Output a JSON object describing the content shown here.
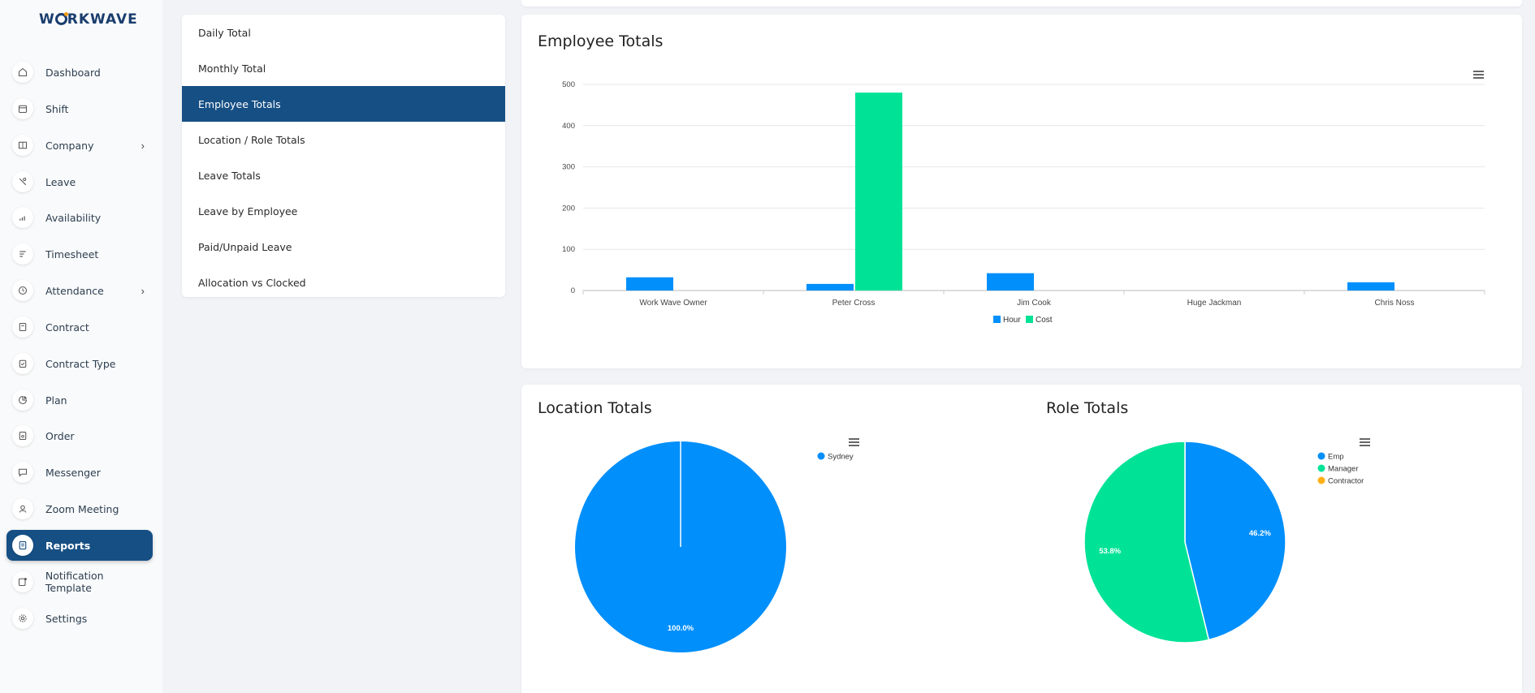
{
  "app": {
    "logo_text_1": "W",
    "logo_text_2": "RKWAVE"
  },
  "sidebar": {
    "items": [
      {
        "label": "Dashboard",
        "icon": "home-icon"
      },
      {
        "label": "Shift",
        "icon": "calendar-icon"
      },
      {
        "label": "Company",
        "icon": "building-icon",
        "has_children": true
      },
      {
        "label": "Leave",
        "icon": "leave-icon"
      },
      {
        "label": "Availability",
        "icon": "bars-icon"
      },
      {
        "label": "Timesheet",
        "icon": "lines-icon"
      },
      {
        "label": "Attendance",
        "icon": "clock-icon",
        "has_children": true
      },
      {
        "label": "Contract",
        "icon": "contract-icon"
      },
      {
        "label": "Contract Type",
        "icon": "clipboard-icon"
      },
      {
        "label": "Plan",
        "icon": "pie-icon"
      },
      {
        "label": "Order",
        "icon": "order-icon"
      },
      {
        "label": "Messenger",
        "icon": "chat-icon"
      },
      {
        "label": "Zoom Meeting",
        "icon": "user-icon"
      },
      {
        "label": "Reports",
        "icon": "report-icon",
        "active": true
      },
      {
        "label": "Notification Template",
        "icon": "notification-icon"
      },
      {
        "label": "Settings",
        "icon": "gear-icon"
      }
    ],
    "chevron": "›"
  },
  "submenu": {
    "items": [
      "Daily Total",
      "Monthly Total",
      "Employee Totals",
      "Location / Role Totals",
      "Leave Totals",
      "Leave by Employee",
      "Paid/Unpaid Leave",
      "Allocation vs Clocked"
    ],
    "active": "Employee Totals"
  },
  "colors": {
    "primary": "#164f84",
    "blue": "#008ffb",
    "green": "#00e396",
    "orange": "#feb019"
  },
  "chart_data": [
    {
      "type": "bar",
      "title": "Employee Totals",
      "categories": [
        "Work Wave Owner",
        "Peter Cross",
        "Jim Cook",
        "Huge Jackman",
        "Chris Noss"
      ],
      "series": [
        {
          "name": "Hour",
          "color": "#008ffb",
          "values": [
            32,
            16,
            42,
            0,
            20
          ]
        },
        {
          "name": "Cost",
          "color": "#00e396",
          "values": [
            0,
            480,
            0,
            0,
            0
          ]
        }
      ],
      "ylim": [
        0,
        500
      ],
      "yticks": [
        "0",
        "100",
        "200",
        "300",
        "400",
        "500"
      ],
      "grid": true,
      "legend": "bottom"
    },
    {
      "type": "pie",
      "title": "Location Totals",
      "labels": [
        "Sydney"
      ],
      "values": [
        100
      ],
      "colors": [
        "#008ffb"
      ],
      "data_labels": [
        "100.0%"
      ],
      "legend": "top-right"
    },
    {
      "type": "pie",
      "title": "Role Totals",
      "labels": [
        "Emp",
        "Manager",
        "Contractor"
      ],
      "values": [
        46.2,
        53.8,
        0
      ],
      "colors": [
        "#008ffb",
        "#00e396",
        "#feb019"
      ],
      "data_labels": [
        "46.2%",
        "53.8%",
        ""
      ],
      "legend": "top-right"
    }
  ]
}
